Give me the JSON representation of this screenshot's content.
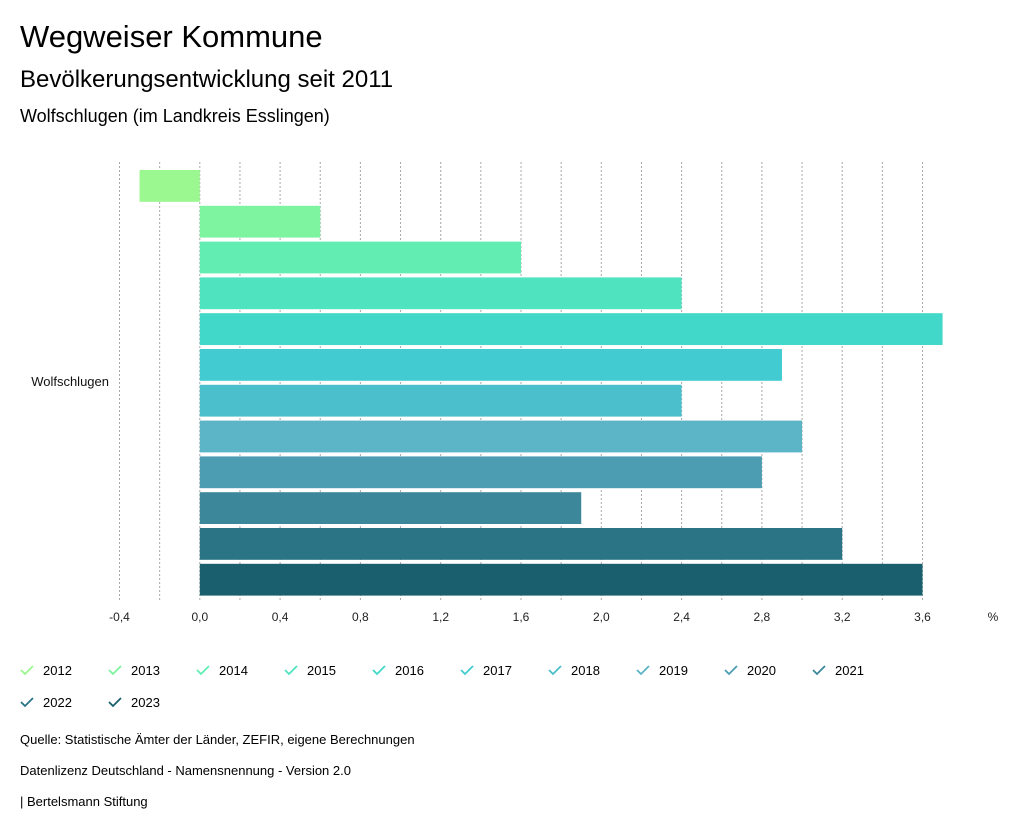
{
  "header": {
    "title": "Wegweiser Kommune",
    "subtitle": "Bevölkerungsentwicklung seit 2011",
    "region": "Wolfschlugen (im Landkreis Esslingen)"
  },
  "chart_data": {
    "type": "bar",
    "orientation": "horizontal",
    "categories": [
      "Wolfschlugen"
    ],
    "series": [
      {
        "name": "2012",
        "values": [
          -0.3
        ],
        "color": "#9bf78f"
      },
      {
        "name": "2013",
        "values": [
          0.6
        ],
        "color": "#7ef4a0"
      },
      {
        "name": "2014",
        "values": [
          1.6
        ],
        "color": "#62edb2"
      },
      {
        "name": "2015",
        "values": [
          2.4
        ],
        "color": "#4fe3c0"
      },
      {
        "name": "2016",
        "values": [
          3.7
        ],
        "color": "#42d8c9"
      },
      {
        "name": "2017",
        "values": [
          2.9
        ],
        "color": "#42ccd1"
      },
      {
        "name": "2018",
        "values": [
          2.4
        ],
        "color": "#4cbfcd"
      },
      {
        "name": "2019",
        "values": [
          3.0
        ],
        "color": "#5cb4c7"
      },
      {
        "name": "2020",
        "values": [
          2.8
        ],
        "color": "#4c9db2"
      },
      {
        "name": "2021",
        "values": [
          1.9
        ],
        "color": "#3c889a"
      },
      {
        "name": "2022",
        "values": [
          3.2
        ],
        "color": "#2a7485"
      },
      {
        "name": "2023",
        "values": [
          3.6
        ],
        "color": "#1a5f6e"
      }
    ],
    "xlabel": "%",
    "xlim": [
      -0.4,
      3.6
    ],
    "ticks": [
      "-0,4",
      "0,0",
      "0,4",
      "0,8",
      "1,2",
      "1,6",
      "2,0",
      "2,4",
      "2,8",
      "3,2",
      "3,6"
    ],
    "tick_values": [
      -0.4,
      0.0,
      0.4,
      0.8,
      1.2,
      1.6,
      2.0,
      2.4,
      2.8,
      3.2,
      3.6
    ],
    "grid": true,
    "legend_position": "bottom"
  },
  "footer": {
    "source": "Quelle: Statistische Ämter der Länder, ZEFIR, eigene Berechnungen",
    "license": "Datenlizenz Deutschland - Namensnennung - Version 2.0",
    "publisher": "| Bertelsmann Stiftung"
  }
}
